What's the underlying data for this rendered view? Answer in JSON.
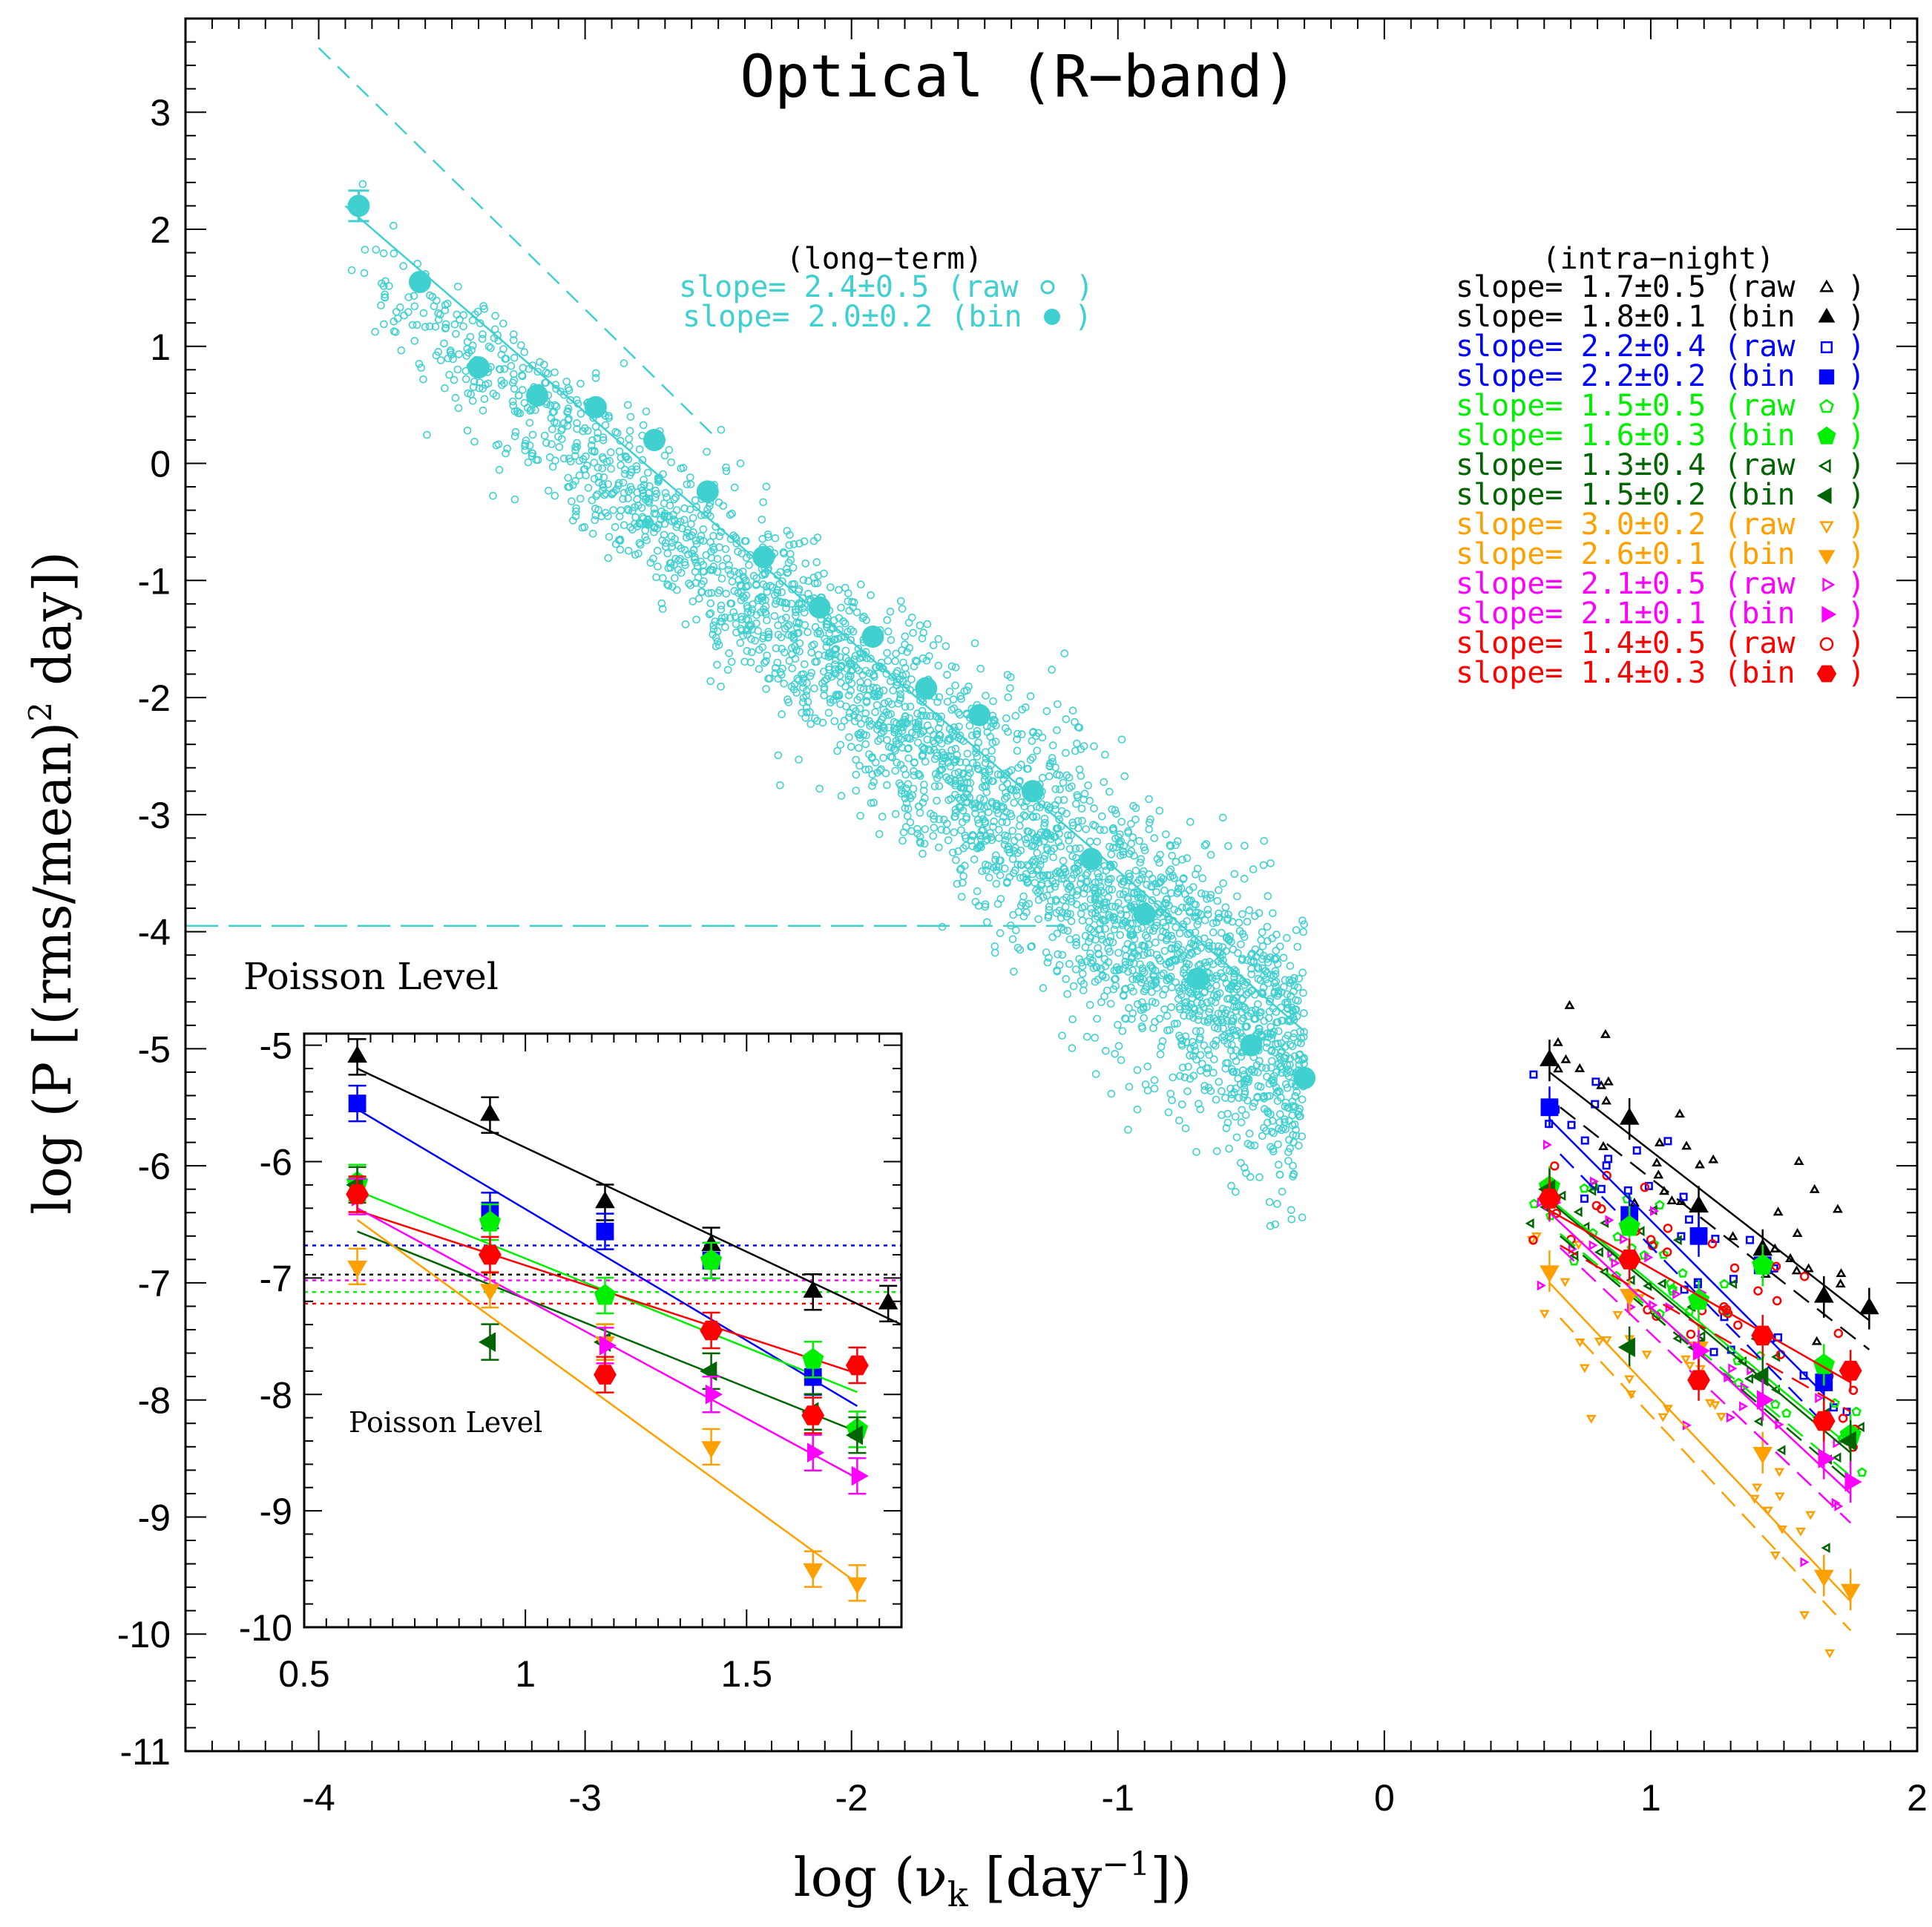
{
  "chart_data": {
    "type": "scatter",
    "title": "Optical (R−band)",
    "xlabel_main": "log (ν",
    "xlabel_sub": "k",
    "xlabel_unit": " [day",
    "xlabel_sup": "−1",
    "xlabel_end": "])",
    "ylabel_main": "log (P [(rms/mean)",
    "ylabel_sup": "2",
    "ylabel_end": " day])",
    "xlim": [
      -4.5,
      2.0
    ],
    "ylim": [
      -11,
      3.8
    ],
    "xticks": [
      "-4",
      "-3",
      "-2",
      "-1",
      "0",
      "1",
      "2"
    ],
    "yticks": [
      "3",
      "2",
      "1",
      "0",
      "-1",
      "-2",
      "-3",
      "-4",
      "-5",
      "-6",
      "-7",
      "-8",
      "-9",
      "-10",
      "-11"
    ],
    "poisson_label": "Poisson Level",
    "poisson_level": -3.95,
    "long_term": {
      "header": "(long−term)",
      "color": "#40d0d0",
      "raw_label": "slope= 2.4±0.5 (raw",
      "bin_label": "slope= 2.0±0.2 (bin",
      "fit_x": [
        -3.9,
        -0.3
      ],
      "fit_y": [
        2.2,
        -4.85
      ],
      "dashed_x": [
        -4.0,
        -2.5
      ],
      "dashed_y": [
        3.55,
        0.2
      ],
      "binned": [
        {
          "x": -3.85,
          "y": 2.2,
          "err": 0.13
        },
        {
          "x": -3.62,
          "y": 1.55
        },
        {
          "x": -3.4,
          "y": 0.82
        },
        {
          "x": -3.18,
          "y": 0.58
        },
        {
          "x": -2.96,
          "y": 0.48
        },
        {
          "x": -2.74,
          "y": 0.2
        },
        {
          "x": -2.54,
          "y": -0.24
        },
        {
          "x": -2.33,
          "y": -0.8
        },
        {
          "x": -2.12,
          "y": -1.23
        },
        {
          "x": -1.92,
          "y": -1.48
        },
        {
          "x": -1.72,
          "y": -1.92
        },
        {
          "x": -1.52,
          "y": -2.15
        },
        {
          "x": -1.32,
          "y": -2.8
        },
        {
          "x": -1.1,
          "y": -3.38
        },
        {
          "x": -0.9,
          "y": -3.85
        },
        {
          "x": -0.7,
          "y": -4.4
        },
        {
          "x": -0.5,
          "y": -4.97
        },
        {
          "x": -0.3,
          "y": -5.25
        }
      ]
    },
    "intra_night": {
      "header": "(intra−night)",
      "series": [
        {
          "name": "black",
          "color": "#000000",
          "marker": "triangle-up",
          "raw_label": "slope= 1.7±0.5 (raw",
          "bin_label": "slope= 1.8±0.1 (bin",
          "x": [
            0.62,
            0.92,
            1.18,
            1.42,
            1.65,
            1.82
          ],
          "y": [
            -5.1,
            -5.6,
            -6.35,
            -6.72,
            -7.12,
            -7.22
          ]
        },
        {
          "name": "blue",
          "color": "#0000ff",
          "marker": "square",
          "raw_label": "slope= 2.2±0.4 (raw",
          "bin_label": "slope= 2.2±0.2 (bin",
          "x": [
            0.62,
            0.92,
            1.18,
            1.42,
            1.65
          ],
          "y": [
            -5.5,
            -6.42,
            -6.6,
            -6.85,
            -7.85
          ]
        },
        {
          "name": "green",
          "color": "#00ee00",
          "marker": "pentagon",
          "raw_label": "slope= 1.5±0.5 (raw",
          "bin_label": "slope= 1.6±0.3 (bin",
          "x": [
            0.62,
            0.92,
            1.18,
            1.42,
            1.65,
            1.75
          ],
          "y": [
            -6.18,
            -6.52,
            -7.15,
            -6.85,
            -7.7,
            -8.3
          ]
        },
        {
          "name": "darkgreen",
          "color": "#006400",
          "marker": "triangle-left",
          "raw_label": "slope= 1.3±0.4 (raw",
          "bin_label": "slope= 1.5±0.2 (bin",
          "x": [
            0.62,
            0.92,
            1.18,
            1.42,
            1.65,
            1.75
          ],
          "y": [
            -6.2,
            -7.55,
            -7.55,
            -7.8,
            -8.15,
            -8.35
          ]
        },
        {
          "name": "orange",
          "color": "#ffa000",
          "marker": "triangle-down",
          "raw_label": "slope= 3.0±0.2 (raw",
          "bin_label": "slope= 2.6±0.1 (bin",
          "x": [
            0.62,
            0.92,
            1.18,
            1.42,
            1.65,
            1.75
          ],
          "y": [
            -6.9,
            -7.1,
            -7.55,
            -8.45,
            -9.5,
            -9.62
          ]
        },
        {
          "name": "magenta",
          "color": "#ff00ff",
          "marker": "triangle-right",
          "raw_label": "slope= 2.1±0.5 (raw",
          "bin_label": "slope= 2.1±0.1 (bin",
          "x": [
            0.62,
            0.92,
            1.18,
            1.42,
            1.65,
            1.75
          ],
          "y": [
            -6.3,
            -6.8,
            -7.58,
            -8.0,
            -8.5,
            -8.7
          ]
        },
        {
          "name": "red",
          "color": "#ff0000",
          "marker": "hexagon",
          "raw_label": "slope= 1.4±0.5 (raw",
          "bin_label": "slope= 1.4±0.3 (bin",
          "x": [
            0.62,
            0.92,
            1.18,
            1.42,
            1.65,
            1.75
          ],
          "y": [
            -6.28,
            -6.8,
            -7.83,
            -7.45,
            -8.18,
            -7.75
          ]
        }
      ]
    },
    "inset": {
      "xlim": [
        0.5,
        1.85
      ],
      "ylim": [
        -10,
        -4.9
      ],
      "xticks": [
        "0.5",
        "1",
        "1.5"
      ],
      "yticks": [
        "-5",
        "-6",
        "-7",
        "-8",
        "-9",
        "-10"
      ],
      "poisson_label": "Poisson Level",
      "poisson_levels": [
        {
          "color": "#0000ff",
          "y": -6.72
        },
        {
          "color": "#000000",
          "y": -6.97
        },
        {
          "color": "#ff00ff",
          "y": -7.02
        },
        {
          "color": "#00ee00",
          "y": -7.12
        },
        {
          "color": "#ff0000",
          "y": -7.22
        }
      ],
      "fits": [
        {
          "color": "#000000",
          "x": [
            0.62,
            1.85
          ],
          "y": [
            -5.2,
            -7.4
          ]
        },
        {
          "color": "#0000ff",
          "x": [
            0.62,
            1.75
          ],
          "y": [
            -5.55,
            -8.1
          ]
        },
        {
          "color": "#00ee00",
          "x": [
            0.62,
            1.75
          ],
          "y": [
            -6.25,
            -7.98
          ]
        },
        {
          "color": "#ff0000",
          "x": [
            0.62,
            1.75
          ],
          "y": [
            -6.42,
            -7.82
          ]
        },
        {
          "color": "#006400",
          "x": [
            0.62,
            1.75
          ],
          "y": [
            -6.6,
            -8.32
          ]
        },
        {
          "color": "#ff00ff",
          "x": [
            0.62,
            1.75
          ],
          "y": [
            -6.4,
            -8.72
          ]
        },
        {
          "color": "#ffa000",
          "x": [
            0.62,
            1.75
          ],
          "y": [
            -6.5,
            -9.62
          ]
        }
      ]
    }
  }
}
